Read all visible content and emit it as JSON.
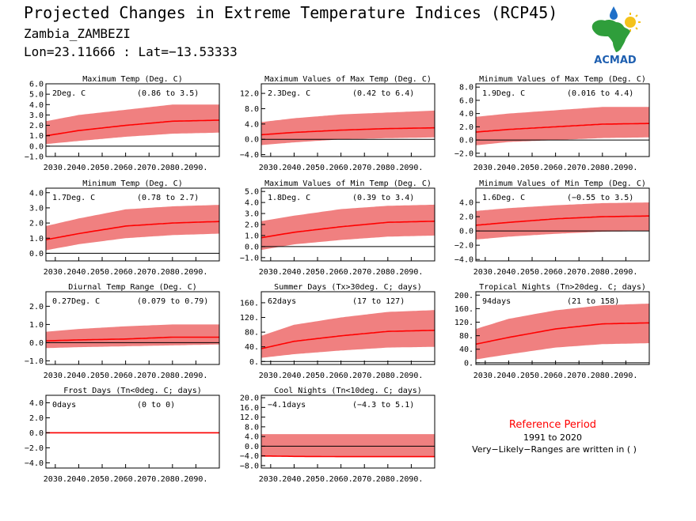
{
  "header": {
    "title": "Projected Changes in Extreme Temperature Indices (RCP45)",
    "region": "Zambia_ZAMBEZI",
    "coords": "Lon=23.11666 : Lat=−13.53333",
    "logo_text": "ACMAD"
  },
  "reference": {
    "title": "Reference Period",
    "period": "1991 to 2020",
    "note": "Very−Likely−Ranges are written in ( )"
  },
  "colors": {
    "band": "#f08080",
    "line": "#ff0000",
    "zero": "#000000"
  },
  "chart_data": [
    {
      "type": "area",
      "title": "Maximum Temp (Deg. C)",
      "value_label": "2Deg. C",
      "range_label": "(0.86 to 3.5)",
      "x_ticks": [
        "2030.",
        "2040.",
        "2050.",
        "2060.",
        "2070.",
        "2080.",
        "2090."
      ],
      "y_ticks": [
        "6.0",
        "5.0",
        "4.0",
        "3.0",
        "2.0",
        "1.0",
        "0.0",
        "−1.0"
      ],
      "ylim": [
        -1,
        6
      ],
      "xlim": [
        2026,
        2100
      ],
      "series": [
        {
          "x": [
            2026,
            2040,
            2060,
            2080,
            2100
          ],
          "median": [
            1.0,
            1.5,
            2.0,
            2.4,
            2.5
          ],
          "low": [
            0.2,
            0.5,
            0.9,
            1.2,
            1.3
          ],
          "high": [
            2.4,
            3.0,
            3.5,
            4.0,
            4.0
          ]
        }
      ]
    },
    {
      "type": "area",
      "title": "Maximum Values of Max Temp (Deg. C)",
      "value_label": "2.3Deg. C",
      "range_label": "(0.42 to 6.4)",
      "x_ticks": [
        "2030.",
        "2040.",
        "2050.",
        "2060.",
        "2070.",
        "2080.",
        "2090."
      ],
      "y_ticks": [
        "12.0",
        "8.0",
        "4.0",
        "0.0",
        "−4.0"
      ],
      "ylim": [
        -4.5,
        14.5
      ],
      "xlim": [
        2026,
        2100
      ],
      "series": [
        {
          "x": [
            2026,
            2040,
            2060,
            2080,
            2100
          ],
          "median": [
            1.2,
            1.8,
            2.4,
            2.8,
            3.0
          ],
          "low": [
            -1.5,
            -0.8,
            0.0,
            0.3,
            0.5
          ],
          "high": [
            4.5,
            5.5,
            6.5,
            7.0,
            7.5
          ]
        }
      ]
    },
    {
      "type": "area",
      "title": "Minimum Values of Max Temp (Deg. C)",
      "value_label": "1.9Deg. C",
      "range_label": "(0.016 to 4.4)",
      "x_ticks": [
        "2030.",
        "2040.",
        "2050.",
        "2060.",
        "2070.",
        "2080.",
        "2090."
      ],
      "y_ticks": [
        "8.0",
        "6.0",
        "4.0",
        "2.0",
        "0.0",
        "−2.0"
      ],
      "ylim": [
        -2.5,
        8.5
      ],
      "xlim": [
        2026,
        2100
      ],
      "series": [
        {
          "x": [
            2026,
            2040,
            2060,
            2080,
            2100
          ],
          "median": [
            1.2,
            1.6,
            2.0,
            2.4,
            2.5
          ],
          "low": [
            -0.8,
            -0.3,
            0.0,
            0.3,
            0.4
          ],
          "high": [
            3.5,
            4.0,
            4.5,
            5.0,
            5.0
          ]
        }
      ]
    },
    {
      "type": "area",
      "title": "Minimum Temp (Deg. C)",
      "value_label": "1.7Deg. C",
      "range_label": "(0.78 to 2.7)",
      "x_ticks": [
        "2030.",
        "2040.",
        "2050.",
        "2060.",
        "2070.",
        "2080.",
        "2090."
      ],
      "y_ticks": [
        "4.0",
        "3.0",
        "2.0",
        "1.0",
        "0.0"
      ],
      "ylim": [
        -0.5,
        4.3
      ],
      "xlim": [
        2026,
        2100
      ],
      "series": [
        {
          "x": [
            2026,
            2040,
            2060,
            2080,
            2100
          ],
          "median": [
            0.9,
            1.3,
            1.8,
            2.0,
            2.1
          ],
          "low": [
            0.2,
            0.6,
            1.0,
            1.2,
            1.3
          ],
          "high": [
            1.8,
            2.3,
            2.9,
            3.1,
            3.2
          ]
        }
      ]
    },
    {
      "type": "area",
      "title": "Maximum Values of Min Temp (Deg. C)",
      "value_label": "1.8Deg. C",
      "range_label": "(0.39 to 3.4)",
      "x_ticks": [
        "2030.",
        "2040.",
        "2050.",
        "2060.",
        "2070.",
        "2080.",
        "2090."
      ],
      "y_ticks": [
        "5.0",
        "4.0",
        "3.0",
        "2.0",
        "1.0",
        "0.0",
        "−1.0"
      ],
      "ylim": [
        -1.3,
        5.3
      ],
      "xlim": [
        2026,
        2100
      ],
      "series": [
        {
          "x": [
            2026,
            2040,
            2060,
            2080,
            2100
          ],
          "median": [
            0.8,
            1.3,
            1.8,
            2.2,
            2.3
          ],
          "low": [
            -0.3,
            0.2,
            0.6,
            0.9,
            1.0
          ],
          "high": [
            2.3,
            2.8,
            3.4,
            3.7,
            3.8
          ]
        }
      ]
    },
    {
      "type": "area",
      "title": "Minimum Values of Min Temp (Deg. C)",
      "value_label": "1.6Deg. C",
      "range_label": "(−0.55 to 3.5)",
      "x_ticks": [
        "2030.",
        "2040.",
        "2050.",
        "2060.",
        "2070.",
        "2080.",
        "2090."
      ],
      "y_ticks": [
        "4.0",
        "2.0",
        "0.0",
        "−2.0",
        "−4.0"
      ],
      "ylim": [
        -4.2,
        6.0
      ],
      "xlim": [
        2026,
        2100
      ],
      "series": [
        {
          "x": [
            2026,
            2040,
            2060,
            2080,
            2100
          ],
          "median": [
            0.8,
            1.2,
            1.7,
            2.0,
            2.1
          ],
          "low": [
            -1.2,
            -0.8,
            -0.4,
            -0.1,
            0.0
          ],
          "high": [
            2.8,
            3.2,
            3.6,
            3.9,
            4.0
          ]
        }
      ]
    },
    {
      "type": "area",
      "title": "Diurnal Temp Range (Deg. C)",
      "value_label": "0.27Deg. C",
      "range_label": "(0.079 to 0.79)",
      "x_ticks": [
        "2030.",
        "2040.",
        "2050.",
        "2060.",
        "2070.",
        "2080.",
        "2090."
      ],
      "y_ticks": [
        "2.0",
        "1.0",
        "0.0",
        "−1.0"
      ],
      "ylim": [
        -1.2,
        2.8
      ],
      "xlim": [
        2026,
        2100
      ],
      "series": [
        {
          "x": [
            2026,
            2040,
            2060,
            2080,
            2100
          ],
          "median": [
            0.1,
            0.15,
            0.2,
            0.3,
            0.3
          ],
          "low": [
            -0.3,
            -0.25,
            -0.2,
            -0.15,
            -0.1
          ],
          "high": [
            0.6,
            0.75,
            0.9,
            1.0,
            1.0
          ]
        }
      ]
    },
    {
      "type": "area",
      "title": "Summer Days (Tx>30deg. C; days)",
      "value_label": "62days",
      "range_label": "(17 to 127)",
      "x_ticks": [
        "2030.",
        "2040.",
        "2050.",
        "2060.",
        "2070.",
        "2080.",
        "2090."
      ],
      "y_ticks": [
        "160.",
        "120.",
        "80.",
        "40.",
        "0."
      ],
      "ylim": [
        -8,
        190
      ],
      "xlim": [
        2026,
        2100
      ],
      "series": [
        {
          "x": [
            2026,
            2040,
            2060,
            2080,
            2100
          ],
          "median": [
            35,
            55,
            70,
            82,
            85
          ],
          "low": [
            10,
            20,
            30,
            38,
            40
          ],
          "high": [
            70,
            100,
            120,
            135,
            140
          ]
        }
      ]
    },
    {
      "type": "area",
      "title": "Tropical Nights (Tn>20deg. C; days)",
      "value_label": "94days",
      "range_label": "(21 to 158)",
      "x_ticks": [
        "2030.",
        "2040.",
        "2050.",
        "2060.",
        "2070.",
        "2080.",
        "2090."
      ],
      "y_ticks": [
        "200.",
        "160.",
        "120.",
        "80.",
        "40.",
        "0."
      ],
      "ylim": [
        -5,
        210
      ],
      "xlim": [
        2026,
        2100
      ],
      "series": [
        {
          "x": [
            2026,
            2040,
            2060,
            2080,
            2100
          ],
          "median": [
            55,
            75,
            100,
            115,
            118
          ],
          "low": [
            10,
            25,
            45,
            55,
            58
          ],
          "high": [
            100,
            130,
            155,
            170,
            175
          ]
        }
      ]
    },
    {
      "type": "area",
      "title": "Frost Days (Tn<0deg. C; days)",
      "value_label": "0days",
      "range_label": "(0 to 0)",
      "x_ticks": [
        "2030.",
        "2040.",
        "2050.",
        "2060.",
        "2070.",
        "2080.",
        "2090."
      ],
      "y_ticks": [
        "4.0",
        "2.0",
        "0.0",
        "−2.0",
        "−4.0"
      ],
      "ylim": [
        -4.7,
        5.0
      ],
      "xlim": [
        2026,
        2100
      ],
      "series": [
        {
          "x": [
            2026,
            2100
          ],
          "median": [
            0,
            0
          ],
          "low": [
            0,
            0
          ],
          "high": [
            0,
            0
          ]
        }
      ]
    },
    {
      "type": "area",
      "title": "Cool Nights (Tn<10deg. C; days)",
      "value_label": "−4.1days",
      "range_label": "(−4.3 to 5.1)",
      "x_ticks": [
        "2030.",
        "2040.",
        "2050.",
        "2060.",
        "2070.",
        "2080.",
        "2090."
      ],
      "y_ticks": [
        "20.0",
        "16.0",
        "12.0",
        "8.0",
        "4.0",
        "0.0",
        "−4.0",
        "−8.0"
      ],
      "ylim": [
        -9,
        21
      ],
      "xlim": [
        2026,
        2100
      ],
      "series": [
        {
          "x": [
            2026,
            2040,
            2060,
            2080,
            2100
          ],
          "median": [
            -4.0,
            -4.2,
            -4.3,
            -4.3,
            -4.3
          ],
          "low": [
            -4.3,
            -4.3,
            -4.3,
            -4.3,
            -4.3
          ],
          "high": [
            5.0,
            5.0,
            5.0,
            5.0,
            5.0
          ]
        }
      ]
    }
  ]
}
